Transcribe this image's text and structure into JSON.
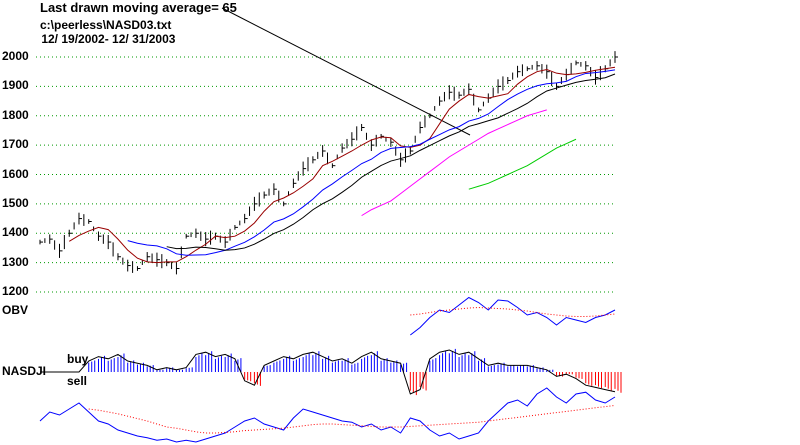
{
  "chart_data": {
    "type": "line",
    "title": "Last drawn moving average= 65",
    "file": "c:\\peerless\\NASD03.txt",
    "date_range": " 12/ 19/2002- 12/ 31/2003",
    "ylim": [
      1200,
      2000
    ],
    "yticks": [
      "2000",
      "1900",
      "1800",
      "1700",
      "1600",
      "1500",
      "1400",
      "1300",
      "1200"
    ],
    "grid": true,
    "price_close": [
      1370,
      1380,
      1340,
      1400,
      1450,
      1440,
      1390,
      1370,
      1320,
      1290,
      1280,
      1320,
      1310,
      1300,
      1280,
      1390,
      1400,
      1380,
      1390,
      1370,
      1420,
      1450,
      1500,
      1530,
      1550,
      1500,
      1570,
      1620,
      1650,
      1680,
      1630,
      1690,
      1720,
      1760,
      1700,
      1730,
      1710,
      1650,
      1680,
      1760,
      1800,
      1850,
      1880,
      1870,
      1890,
      1820,
      1860,
      1900,
      1920,
      1950,
      1960,
      1970,
      1950,
      1900,
      1940,
      1980,
      1970,
      1930,
      1960,
      2000
    ],
    "ma_magenta": {
      "start_index": 33,
      "values": [
        1460,
        1480,
        1495,
        1510,
        1535,
        1560,
        1585,
        1610,
        1635,
        1660,
        1680,
        1700,
        1720,
        1740,
        1755,
        1770,
        1785,
        1800,
        1810,
        1820
      ]
    },
    "ma_green": {
      "start_index": 44,
      "values": [
        1550,
        1560,
        1570,
        1585,
        1600,
        1615,
        1630,
        1650,
        1670,
        1690,
        1705,
        1720
      ]
    },
    "labels": {
      "obv": "OBV",
      "indicator": "NASDJI",
      "buy": "buy",
      "sell": "sell"
    },
    "obv": {
      "start_index": 38,
      "line": [
        20,
        35,
        55,
        70,
        65,
        80,
        95,
        85,
        70,
        90,
        88,
        75,
        60,
        65,
        55,
        40,
        55,
        50,
        45,
        55,
        60,
        70
      ],
      "ma": [
        60,
        62,
        65,
        68,
        70,
        72,
        74,
        75,
        74,
        73,
        72,
        70,
        68,
        65,
        62,
        60,
        58,
        57,
        57,
        58,
        60,
        62
      ]
    },
    "nasdji_hist": [
      0,
      0,
      0,
      0,
      0,
      5,
      7,
      6,
      8,
      5,
      4,
      3,
      1,
      2,
      1,
      2,
      8,
      9,
      7,
      8,
      6,
      -4,
      -6,
      3,
      5,
      7,
      6,
      8,
      9,
      7,
      5,
      6,
      4,
      7,
      9,
      6,
      5,
      4,
      -10,
      -8,
      6,
      9,
      10,
      8,
      9,
      6,
      3,
      4,
      3,
      3,
      3,
      2,
      1,
      -2,
      -1,
      -3,
      -6,
      -7,
      -8,
      -9
    ],
    "bottom_line": [
      40,
      55,
      50,
      60,
      70,
      55,
      40,
      35,
      25,
      20,
      15,
      12,
      8,
      10,
      5,
      8,
      5,
      10,
      15,
      20,
      30,
      40,
      45,
      35,
      30,
      25,
      45,
      60,
      55,
      50,
      45,
      40,
      38,
      30,
      35,
      25,
      30,
      20,
      45,
      40,
      25,
      15,
      20,
      10,
      15,
      20,
      40,
      55,
      70,
      75,
      65,
      85,
      95,
      80,
      70,
      85,
      88,
      75,
      70,
      80
    ],
    "bottom_ma": [
      null,
      null,
      null,
      null,
      null,
      60,
      58,
      55,
      52,
      48,
      44,
      40,
      35,
      30,
      28,
      25,
      22,
      20,
      20,
      21,
      22,
      24,
      25,
      26,
      27,
      28,
      30,
      32,
      34,
      35,
      35,
      34,
      33,
      32,
      31,
      30,
      30,
      30,
      31,
      32,
      33,
      34,
      35,
      36,
      37,
      38,
      40,
      42,
      44,
      46,
      48,
      50,
      52,
      54,
      56,
      58,
      60,
      62,
      64,
      66
    ]
  }
}
